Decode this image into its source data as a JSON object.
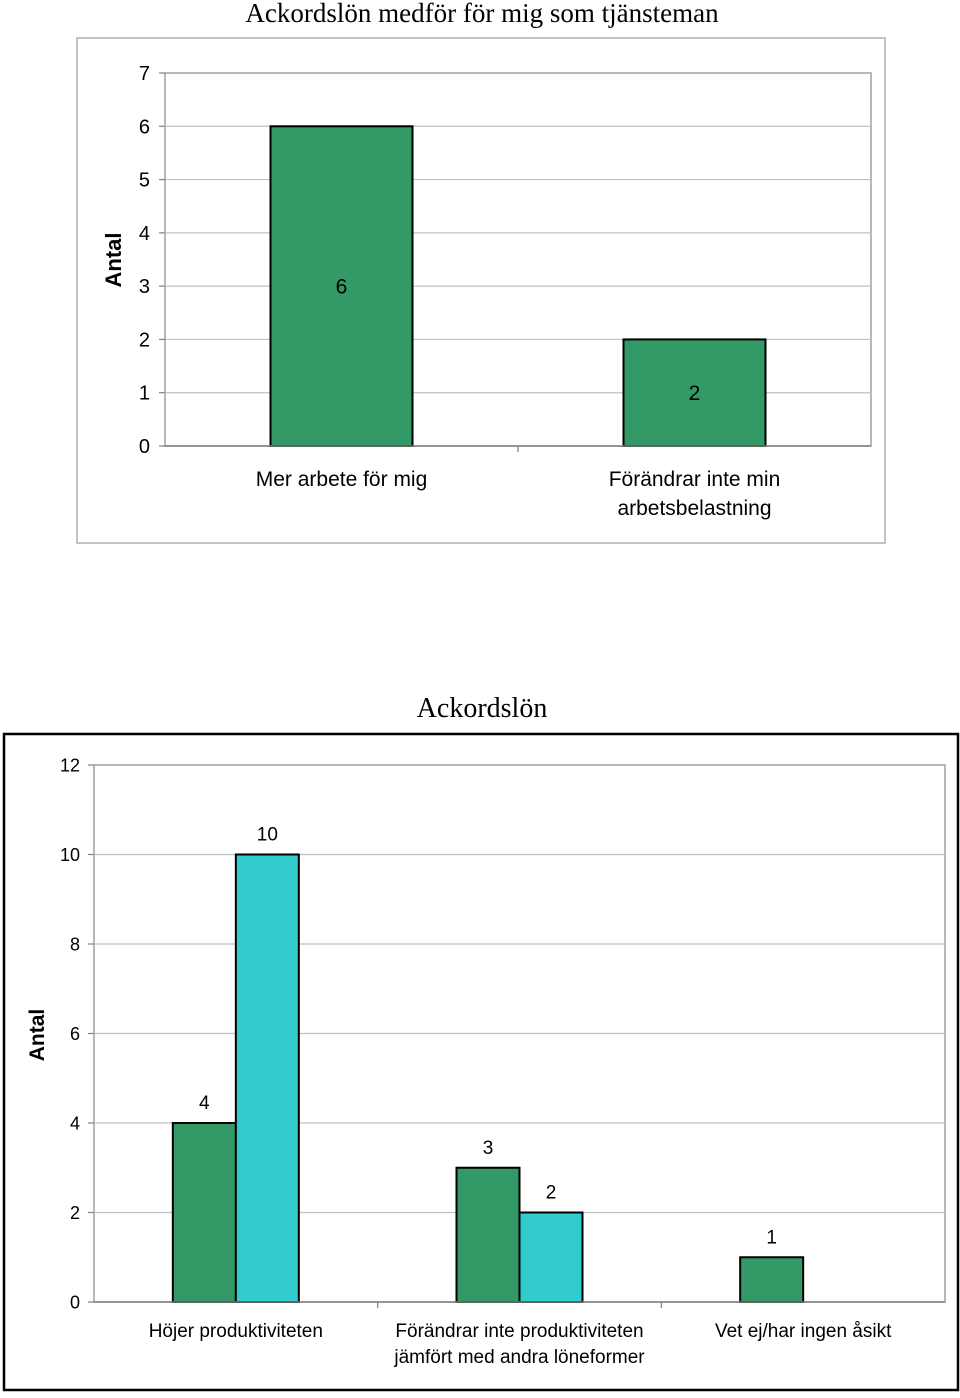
{
  "colors": {
    "bar_green": "#339966",
    "bar_cyan": "#33cccc",
    "gridline": "#c0c0c0",
    "axis": "#808080",
    "text": "#000000"
  },
  "chart_data": [
    {
      "type": "bar",
      "title": "Ackordslön medför för mig som tjänsteman",
      "ylabel": "Antal",
      "xlabel": "",
      "ylim": [
        0,
        7
      ],
      "yticks": [
        0,
        1,
        2,
        3,
        4,
        5,
        6,
        7
      ],
      "grid": true,
      "legend": "none",
      "categories": [
        [
          "Mer arbete för mig"
        ],
        [
          "Förändrar inte min",
          "arbetsbelastning"
        ]
      ],
      "series": [
        {
          "values": [
            6,
            2
          ]
        }
      ]
    },
    {
      "type": "bar",
      "title": "Ackordslön",
      "ylabel": "Antal",
      "xlabel": "",
      "ylim": [
        0,
        12
      ],
      "yticks": [
        0,
        2,
        4,
        6,
        8,
        10,
        12
      ],
      "grid": true,
      "legend": "none",
      "categories": [
        [
          "Höjer produktiviteten"
        ],
        [
          "Förändrar inte produktiviteten",
          "jämfört med andra löneformer"
        ],
        [
          "Vet ej/har ingen åsikt"
        ]
      ],
      "series": [
        {
          "values": [
            4,
            3,
            1
          ]
        },
        {
          "values": [
            10,
            2,
            null
          ]
        }
      ]
    }
  ]
}
